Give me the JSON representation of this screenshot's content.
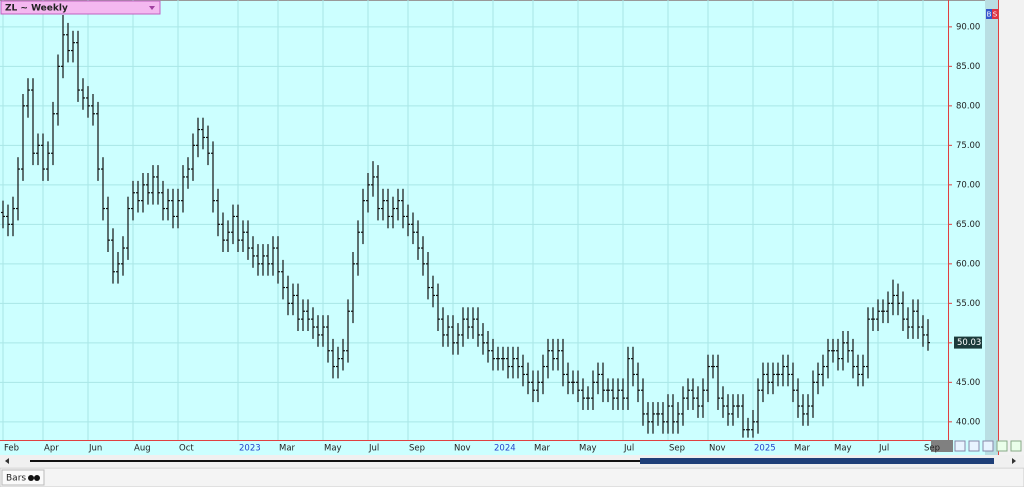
{
  "chart_data": {
    "type": "ohlc",
    "title": "ZL ~ Weekly",
    "color": "#111111",
    "background": "#ccffff",
    "grid": true,
    "categories": [
      "Feb",
      null,
      null,
      null,
      null,
      null,
      null,
      null,
      "Apr",
      null,
      null,
      null,
      null,
      null,
      null,
      null,
      null,
      "Jun",
      null,
      null,
      null,
      null,
      null,
      null,
      null,
      null,
      "Aug",
      null,
      null,
      null,
      null,
      null,
      null,
      null,
      null,
      "Oct",
      null,
      null,
      null,
      null,
      null,
      null,
      null,
      null,
      null,
      null,
      null,
      "2023",
      null,
      null,
      null,
      null,
      null,
      null,
      null,
      "Mar",
      null,
      null,
      null,
      null,
      null,
      null,
      null,
      null,
      "May",
      null,
      null,
      null,
      null,
      null,
      null,
      null,
      null,
      "Jul",
      null,
      null,
      null,
      null,
      null,
      null,
      null,
      "Sep",
      null,
      null,
      null,
      null,
      null,
      null,
      null,
      null,
      "Nov",
      null,
      null,
      null,
      null,
      null,
      null,
      null,
      "2024",
      null,
      null,
      null,
      null,
      null,
      null,
      null,
      "Mar",
      null,
      null,
      null,
      null,
      null,
      null,
      null,
      null,
      "May",
      null,
      null,
      null,
      null,
      null,
      null,
      null,
      null,
      "Jul",
      null,
      null,
      null,
      null,
      null,
      null,
      null,
      null,
      "Sep",
      null,
      null,
      null,
      null,
      null,
      null,
      null,
      "Nov",
      null,
      null,
      null,
      null,
      null,
      null,
      null,
      null,
      "2025",
      null,
      null,
      null,
      null,
      null,
      null,
      null,
      "Mar",
      null,
      null,
      null,
      null,
      null,
      null,
      null,
      "May",
      null,
      null,
      null,
      null,
      null,
      null,
      null,
      null,
      "Jul",
      null,
      null,
      null,
      null,
      null,
      null,
      null,
      null,
      "Sep",
      null
    ],
    "open": [
      66.5,
      66,
      65,
      67,
      72,
      80,
      82,
      74,
      75,
      72,
      74,
      79,
      85,
      89,
      87,
      88,
      82,
      81,
      80,
      79,
      72,
      67,
      63,
      59,
      60,
      62,
      67,
      69,
      68,
      70,
      69,
      71,
      69,
      67,
      68,
      66,
      68,
      71,
      72,
      75,
      77,
      76,
      74,
      68,
      65,
      63,
      64,
      66,
      63,
      64,
      62,
      61,
      60,
      61,
      60,
      62,
      59,
      57,
      55,
      56,
      53,
      54,
      53,
      52,
      51,
      52,
      49,
      47,
      48,
      49,
      54,
      60,
      64,
      68,
      70,
      71,
      67,
      68,
      66,
      67,
      68,
      66,
      65,
      64,
      62,
      60,
      57,
      56,
      53,
      51,
      52,
      50,
      51,
      53,
      52,
      53,
      51,
      50,
      49,
      48,
      48,
      48,
      47,
      48,
      47,
      46,
      45,
      44,
      45,
      47,
      49,
      48,
      49,
      46,
      45,
      45,
      44,
      43,
      43,
      45,
      46,
      44,
      44,
      43,
      44,
      43,
      48,
      46,
      44,
      41,
      40,
      41,
      41,
      40,
      42,
      40,
      41,
      43,
      44,
      43,
      42,
      44,
      47,
      47,
      43,
      42,
      41,
      42,
      42,
      39,
      39,
      40,
      44,
      46,
      45,
      46,
      46,
      47,
      46,
      44,
      42,
      41,
      42,
      45,
      46,
      47,
      49,
      49,
      48,
      50,
      49,
      47,
      46,
      47,
      53,
      53,
      54,
      54,
      55,
      56,
      55,
      53,
      52,
      54,
      52,
      51
    ],
    "high": [
      68,
      67.5,
      68.5,
      73.5,
      81.5,
      83.5,
      83.5,
      76.5,
      76.5,
      75.5,
      80.5,
      86.5,
      91.5,
      90.5,
      89.5,
      89.5,
      83.5,
      82.5,
      81.5,
      80.5,
      73.5,
      68.5,
      64.5,
      61.5,
      63.5,
      68.5,
      70.5,
      70.5,
      71.5,
      71.5,
      72.5,
      72.5,
      70.5,
      69.5,
      69.5,
      69.5,
      72.5,
      73.5,
      76.5,
      78.5,
      78.5,
      77.5,
      75.5,
      69.5,
      66.5,
      65.5,
      67.5,
      67.5,
      65.5,
      65.5,
      63.5,
      62.5,
      62.5,
      62.5,
      63.5,
      63.5,
      60.5,
      58.5,
      57.5,
      57.5,
      55.5,
      55.5,
      54.5,
      53.5,
      53.5,
      53.5,
      50.5,
      49.5,
      50.5,
      55.5,
      61.5,
      65.5,
      69.5,
      71.5,
      73,
      72.5,
      69.5,
      69.5,
      68.5,
      69.5,
      69.5,
      67.5,
      66.5,
      65.5,
      63.5,
      61.5,
      58.5,
      57.5,
      54.5,
      53.5,
      53.5,
      52.5,
      54.5,
      54.5,
      54.5,
      54.5,
      52.5,
      51.5,
      50.5,
      49.5,
      49.5,
      49.5,
      49.5,
      49.5,
      48.5,
      47.5,
      46.5,
      46.5,
      48.5,
      50.5,
      50.5,
      50.5,
      50.5,
      47.5,
      46.5,
      46.5,
      45.5,
      44.5,
      46.5,
      47.5,
      47.5,
      45.5,
      45.5,
      45.5,
      45.5,
      49.5,
      49.5,
      47.5,
      45.5,
      42.5,
      42.5,
      42.5,
      42.5,
      43.5,
      43.5,
      42.5,
      44.5,
      45.5,
      45.5,
      44.5,
      45.5,
      48.5,
      48.5,
      48.5,
      44.5,
      43.5,
      43.5,
      43.5,
      43.5,
      40.5,
      41.5,
      45.5,
      47.5,
      47.5,
      47.5,
      47.5,
      48.5,
      48.5,
      47.5,
      45.5,
      43.5,
      43.5,
      46.5,
      47.5,
      48.5,
      50.5,
      50.5,
      50.5,
      51.5,
      51.5,
      50.5,
      48.5,
      48.5,
      54.5,
      54.5,
      55.5,
      55.5,
      56.5,
      58,
      57.5,
      56.5,
      54.5,
      55.5,
      55.5,
      53.5,
      53
    ],
    "low": [
      64.5,
      63.5,
      63.5,
      65.5,
      70.5,
      78.5,
      72.5,
      72.5,
      70.5,
      70.5,
      72.5,
      77.5,
      83.5,
      85.5,
      85.5,
      80.5,
      79.5,
      78.5,
      77.5,
      70.5,
      65.5,
      61.5,
      57.5,
      57.5,
      58.5,
      60.5,
      65.5,
      66.5,
      66.5,
      67.5,
      67.5,
      67.5,
      65.5,
      65.5,
      64.5,
      64.5,
      66.5,
      69.5,
      70.5,
      73.5,
      74.5,
      72.5,
      66.5,
      63.5,
      61.5,
      61.5,
      62.5,
      61.5,
      61.5,
      60.5,
      59.5,
      58.5,
      58.5,
      58.5,
      58.5,
      57.5,
      55.5,
      53.5,
      53.5,
      51.5,
      51.5,
      51.5,
      50.5,
      49.5,
      49.5,
      47.5,
      45.5,
      45.5,
      46.5,
      47.5,
      52.5,
      58.5,
      62.5,
      66.5,
      68.5,
      65.5,
      65.5,
      64.5,
      64.5,
      65.5,
      64.5,
      63.5,
      62.5,
      60.5,
      58.5,
      55.5,
      54.5,
      51.5,
      49.5,
      49.5,
      48.5,
      48.5,
      49.5,
      50.5,
      50.5,
      49.5,
      48.5,
      47.5,
      46.5,
      46.5,
      46.5,
      45.5,
      45.5,
      45.5,
      44.5,
      43.5,
      42.5,
      42.5,
      43.5,
      45.5,
      46.5,
      46.5,
      44.5,
      43.5,
      43.5,
      42.5,
      41.5,
      41.5,
      41.5,
      43.5,
      42.5,
      42.5,
      41.5,
      41.5,
      41.5,
      41.5,
      44.5,
      42.5,
      39.5,
      38.5,
      38.5,
      39.5,
      38.5,
      38.5,
      38.5,
      38.5,
      39.5,
      41.5,
      41.5,
      40.5,
      40.5,
      42.5,
      45.5,
      41.5,
      40.5,
      39.5,
      39.5,
      40.5,
      38,
      38,
      38,
      38.5,
      42.5,
      43.5,
      43.5,
      44.5,
      44.5,
      44.5,
      42.5,
      40.5,
      39.5,
      39.5,
      40.5,
      43.5,
      44.5,
      45.5,
      47.5,
      46.5,
      46.5,
      47.5,
      45.5,
      44.5,
      44.5,
      45.5,
      51.5,
      51.5,
      52.5,
      52.5,
      53.5,
      53.5,
      51.5,
      50.5,
      50.5,
      50.5,
      49.5,
      49
    ],
    "close": [
      66,
      65,
      67,
      72,
      80,
      82,
      74,
      75,
      72,
      74,
      79,
      85,
      89,
      87,
      88,
      82,
      81,
      80,
      79,
      72,
      67,
      63,
      59,
      60,
      62,
      67,
      69,
      68,
      70,
      69,
      71,
      69,
      67,
      68,
      66,
      68,
      71,
      72,
      75,
      77,
      76,
      74,
      68,
      65,
      63,
      64,
      66,
      63,
      64,
      62,
      61,
      60,
      61,
      60,
      62,
      59,
      57,
      55,
      56,
      53,
      54,
      53,
      52,
      51,
      52,
      49,
      47,
      48,
      49,
      54,
      60,
      64,
      68,
      70,
      71,
      67,
      68,
      66,
      67,
      68,
      66,
      65,
      64,
      62,
      60,
      57,
      56,
      53,
      51,
      52,
      50,
      51,
      53,
      52,
      53,
      51,
      50,
      49,
      48,
      48,
      48,
      47,
      48,
      47,
      46,
      45,
      44,
      45,
      47,
      49,
      48,
      49,
      46,
      45,
      45,
      44,
      43,
      43,
      45,
      46,
      44,
      44,
      43,
      44,
      43,
      48,
      46,
      44,
      41,
      40,
      41,
      41,
      40,
      42,
      40,
      41,
      43,
      44,
      43,
      42,
      44,
      47,
      47,
      43,
      42,
      41,
      42,
      42,
      39,
      39,
      40,
      44,
      46,
      45,
      46,
      46,
      47,
      46,
      44,
      42,
      41,
      42,
      45,
      46,
      47,
      49,
      49,
      48,
      50,
      49,
      47,
      46,
      47,
      53,
      53,
      54,
      54,
      55,
      56,
      55,
      53,
      52,
      54,
      52,
      51,
      50.03
    ],
    "ylim": [
      37.7,
      93.4
    ],
    "yticks": [
      {
        "value": 40,
        "label": "40.00"
      },
      {
        "value": 45,
        "label": "45.00"
      },
      {
        "value": 50,
        "label": "50.00"
      },
      {
        "value": 55,
        "label": "55.00"
      },
      {
        "value": 60,
        "label": "60.00"
      },
      {
        "value": 65,
        "label": "65.00"
      },
      {
        "value": 70,
        "label": "70.00"
      },
      {
        "value": 75,
        "label": "75.00"
      },
      {
        "value": 80,
        "label": "80.00"
      },
      {
        "value": 85,
        "label": "85.00"
      },
      {
        "value": 90,
        "label": "90.00"
      }
    ]
  },
  "toolbar": {
    "mode": "Bars",
    "badges": [
      "B",
      "S"
    ]
  }
}
